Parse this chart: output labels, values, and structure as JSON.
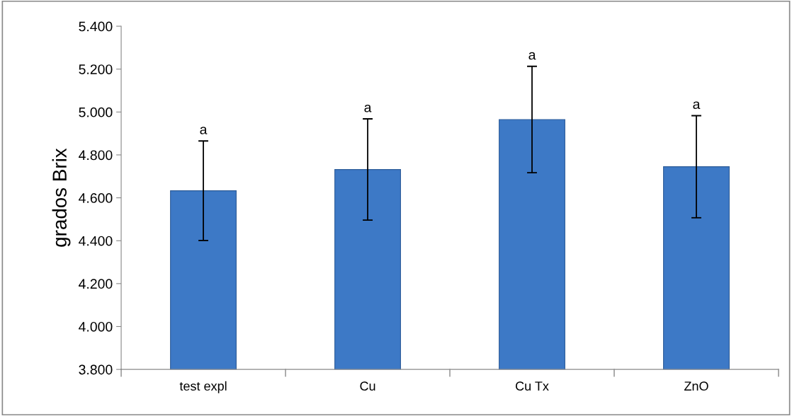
{
  "chart_data": {
    "type": "bar",
    "ylabel": "grados Brix",
    "categories": [
      "test expl",
      "Cu",
      "Cu Tx",
      "ZnO"
    ],
    "values": [
      4.633,
      4.732,
      4.965,
      4.745
    ],
    "errors": [
      0.232,
      0.236,
      0.248,
      0.238
    ],
    "color": "#3d79c6",
    "ylim": [
      3.8,
      5.4
    ],
    "yticks": [
      {
        "value": 3.8,
        "label": "3.800"
      },
      {
        "value": 4.0,
        "label": "4.000"
      },
      {
        "value": 4.2,
        "label": "4.200"
      },
      {
        "value": 4.4,
        "label": "4.400"
      },
      {
        "value": 4.6,
        "label": "4.600"
      },
      {
        "value": 4.8,
        "label": "4.800"
      },
      {
        "value": 5.0,
        "label": "5.000"
      },
      {
        "value": 5.2,
        "label": "5.200"
      },
      {
        "value": 5.4,
        "label": "5.400"
      }
    ],
    "grid": false,
    "annotations": [
      {
        "text": "a",
        "x": "test expl",
        "y": 4.865
      },
      {
        "text": "a",
        "x": "Cu",
        "y": 4.968
      },
      {
        "text": "a",
        "x": "Cu Tx",
        "y": 5.213
      },
      {
        "text": "a",
        "x": "ZnO",
        "y": 4.983
      }
    ]
  }
}
